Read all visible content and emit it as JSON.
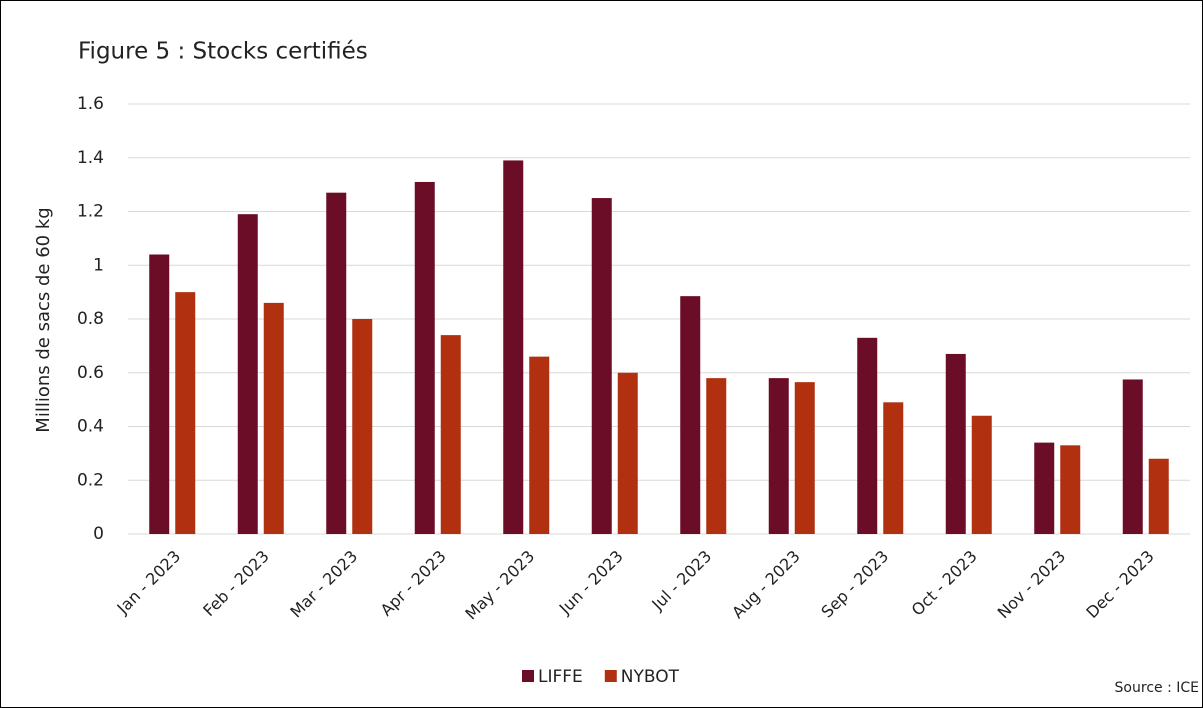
{
  "chart_data": {
    "type": "bar",
    "title": "Figure 5 : Stocks certifiés",
    "y_label": "Millions de sacs de 60 kg",
    "source": "Source : ICE",
    "categories": [
      "Jan - 2023",
      "Feb - 2023",
      "Mar - 2023",
      "Apr - 2023",
      "May - 2023",
      "Jun - 2023",
      "Jul - 2023",
      "Aug - 2023",
      "Sep - 2023",
      "Oct - 2023",
      "Nov - 2023",
      "Dec - 2023"
    ],
    "series": [
      {
        "name": "LIFFE",
        "color": "#6b0d26",
        "values": [
          1.04,
          1.19,
          1.27,
          1.31,
          1.39,
          1.25,
          0.885,
          0.58,
          0.73,
          0.67,
          0.34,
          0.575
        ]
      },
      {
        "name": "NYBOT",
        "color": "#b03010",
        "values": [
          0.9,
          0.86,
          0.8,
          0.74,
          0.66,
          0.6,
          0.58,
          0.565,
          0.49,
          0.44,
          0.33,
          0.28
        ]
      }
    ],
    "ylim": [
      0,
      1.6
    ],
    "yticks": [
      0,
      0.2,
      0.4,
      0.6,
      0.8,
      1,
      1.2,
      1.4,
      1.6
    ],
    "grid": true
  }
}
